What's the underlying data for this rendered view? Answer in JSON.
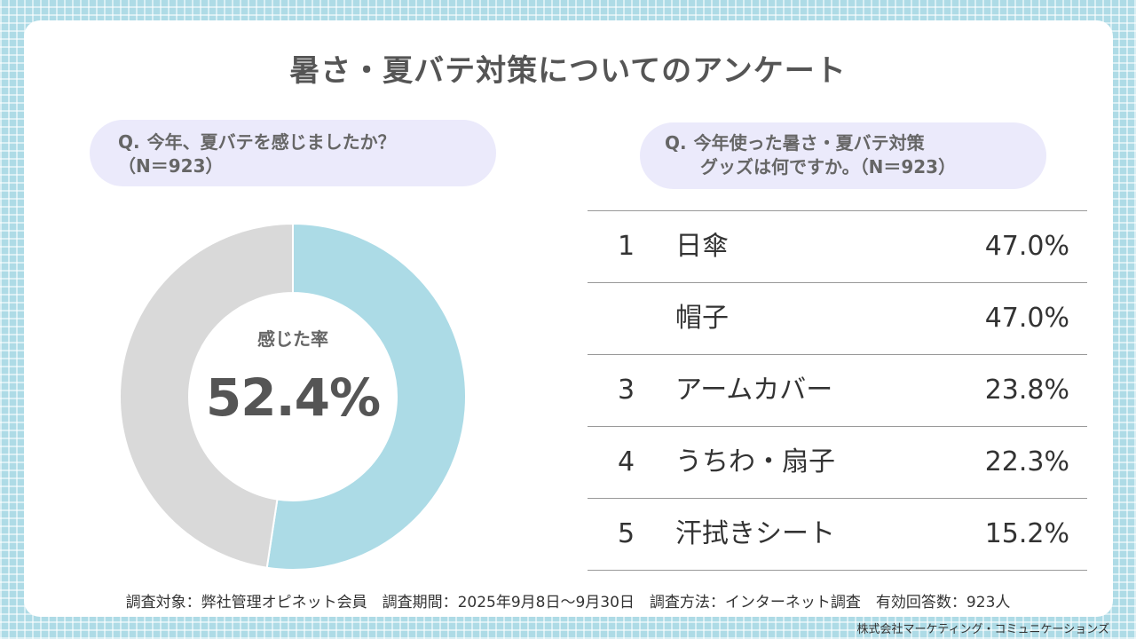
{
  "title": "暑さ・夏バテ対策についてのアンケート",
  "question1": {
    "prefix": "Q.",
    "text": "今年、夏バテを感じましたか？",
    "n": "（N＝923）"
  },
  "question2": {
    "prefix": "Q.",
    "text_line1": "今年使った暑さ・夏バテ対策",
    "text_line2": "グッズは何ですか。（N＝923）"
  },
  "chart_data": [
    {
      "type": "pie",
      "style": "donut",
      "caption": "感じた率",
      "center_value": "52.4%",
      "slices": [
        {
          "value": 52.4,
          "color": "#acdbe6"
        },
        {
          "value": 47.6,
          "color": "#d9d9d9"
        }
      ]
    },
    {
      "type": "table",
      "rows": [
        {
          "rank": "1",
          "item": "日傘",
          "percent": "47.0%"
        },
        {
          "rank": "",
          "item": "帽子",
          "percent": "47.0%"
        },
        {
          "rank": "3",
          "item": "アームカバー",
          "percent": "23.8%"
        },
        {
          "rank": "4",
          "item": "うちわ・扇子",
          "percent": "22.3%"
        },
        {
          "rank": "5",
          "item": "汗拭きシート",
          "percent": "15.2%"
        }
      ]
    }
  ],
  "footnote": "調査対象：弊社管理オピネット会員　調査期間：2025年9月8日～9月30日　調査方法：インターネット調査　有効回答数：923人",
  "company": "株式会社マーケティング・コミュニケーションズ"
}
